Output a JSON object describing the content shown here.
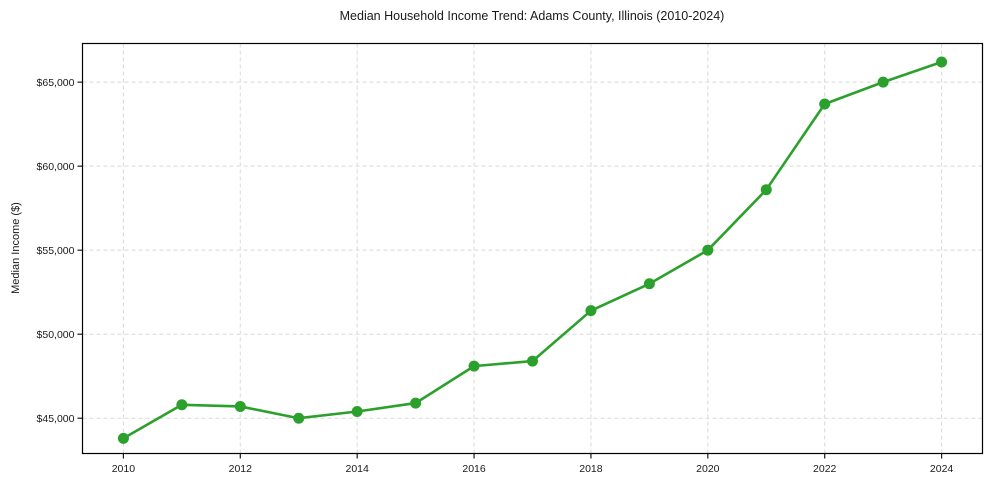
{
  "chart_data": {
    "type": "line",
    "title": "Median Household Income Trend: Adams County, Illinois (2010-2024)",
    "xlabel": "",
    "ylabel": "Median Income ($)",
    "x": [
      2010,
      2011,
      2012,
      2013,
      2014,
      2015,
      2016,
      2017,
      2018,
      2019,
      2020,
      2021,
      2022,
      2023,
      2024
    ],
    "values": [
      43800,
      45800,
      45700,
      45000,
      45400,
      45900,
      48100,
      48400,
      51400,
      53000,
      55000,
      58600,
      63700,
      65000,
      66200
    ],
    "xlim": [
      2009.3,
      2024.7
    ],
    "ylim": [
      42900,
      67300
    ],
    "x_ticks": [
      2010,
      2012,
      2014,
      2016,
      2018,
      2020,
      2022,
      2024
    ],
    "x_tick_labels": [
      "2010",
      "2012",
      "2014",
      "2016",
      "2018",
      "2020",
      "2022",
      "2024"
    ],
    "y_ticks": [
      45000,
      50000,
      55000,
      60000,
      65000
    ],
    "y_tick_labels": [
      "$45,000",
      "$50,000",
      "$55,000",
      "$60,000",
      "$65,000"
    ],
    "grid": true,
    "legend_position": "none",
    "line_color": "#2ca02c",
    "grid_color": "#d9d9d9",
    "background_color": "#ffffff",
    "marker": "circle"
  }
}
